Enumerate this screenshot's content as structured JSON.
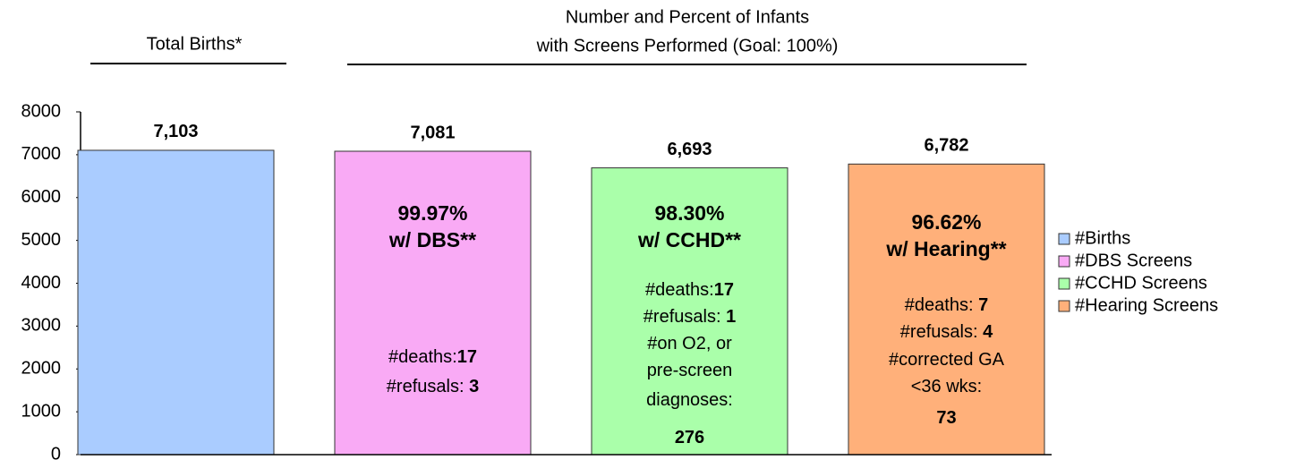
{
  "chart_data": {
    "type": "bar",
    "headers": [
      "Total Births*",
      "Number and Percent of Infants",
      "with Screens Performed (Goal: 100%)"
    ],
    "ylim": [
      0,
      8000
    ],
    "yticks": [
      0,
      1000,
      2000,
      3000,
      4000,
      5000,
      6000,
      7000,
      8000
    ],
    "legend": "right",
    "series": [
      {
        "name": "#Births",
        "color": "#aaccff",
        "values": [
          7103
        ],
        "value_labels": [
          "7,103"
        ],
        "headline": [],
        "notes": []
      },
      {
        "name": "#DBS Screens",
        "color": "#f9aaf5",
        "values": [
          7081
        ],
        "value_labels": [
          "7,081"
        ],
        "headline": [
          "99.97%",
          "w/ DBS**"
        ],
        "notes": [
          [
            {
              "text": "#deaths:",
              "bold": false
            },
            {
              "text": "17",
              "bold": true
            }
          ],
          [
            {
              "text": "#refusals: ",
              "bold": false
            },
            {
              "text": "3",
              "bold": true
            }
          ]
        ]
      },
      {
        "name": "#CCHD Screens",
        "color": "#aaffaa",
        "values": [
          6693
        ],
        "value_labels": [
          "6,693"
        ],
        "headline": [
          "98.30%",
          "w/ CCHD**"
        ],
        "notes": [
          [
            {
              "text": "#deaths:",
              "bold": false
            },
            {
              "text": "17",
              "bold": true
            }
          ],
          [
            {
              "text": "#refusals: ",
              "bold": false
            },
            {
              "text": "1",
              "bold": true
            }
          ],
          [
            {
              "text": "#on O2, or",
              "bold": false
            }
          ],
          [
            {
              "text": "pre-screen",
              "bold": false
            }
          ],
          [
            {
              "text": "diagnoses:",
              "bold": false
            }
          ],
          [
            {
              "text": "276",
              "bold": true
            }
          ]
        ]
      },
      {
        "name": "#Hearing Screens",
        "color": "#ffb07a",
        "values": [
          6782
        ],
        "value_labels": [
          "6,782"
        ],
        "headline": [
          "96.62%",
          "w/ Hearing**"
        ],
        "notes": [
          [
            {
              "text": "#deaths: ",
              "bold": false
            },
            {
              "text": "7",
              "bold": true
            }
          ],
          [
            {
              "text": "#refusals: ",
              "bold": false
            },
            {
              "text": "4",
              "bold": true
            }
          ],
          [
            {
              "text": "#corrected GA",
              "bold": false
            }
          ],
          [
            {
              "text": "<36 wks:",
              "bold": false
            }
          ],
          [
            {
              "text": "73",
              "bold": true
            }
          ]
        ]
      }
    ]
  }
}
